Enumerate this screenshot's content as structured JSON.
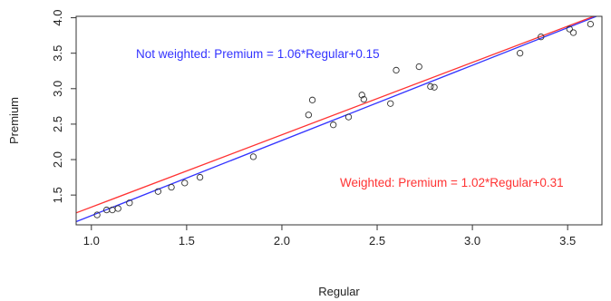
{
  "chart_data": {
    "type": "scatter",
    "title": "",
    "xlabel": "Regular",
    "ylabel": "Premium",
    "xlim": [
      0.92,
      3.68
    ],
    "ylim": [
      1.08,
      4.02
    ],
    "xticks": [
      {
        "value": 1.0,
        "label": "1.0"
      },
      {
        "value": 1.5,
        "label": "1.5"
      },
      {
        "value": 2.0,
        "label": "2.0"
      },
      {
        "value": 2.5,
        "label": "2.5"
      },
      {
        "value": 3.0,
        "label": "3.0"
      },
      {
        "value": 3.5,
        "label": "3.5"
      }
    ],
    "yticks": [
      {
        "value": 1.5,
        "label": "1.5"
      },
      {
        "value": 2.0,
        "label": "2.0"
      },
      {
        "value": 2.5,
        "label": "2.5"
      },
      {
        "value": 3.0,
        "label": "3.0"
      },
      {
        "value": 3.5,
        "label": "3.5"
      },
      {
        "value": 4.0,
        "label": "4.0"
      }
    ],
    "points": [
      {
        "x": 1.03,
        "y": 1.22
      },
      {
        "x": 1.08,
        "y": 1.29
      },
      {
        "x": 1.11,
        "y": 1.29
      },
      {
        "x": 1.14,
        "y": 1.31
      },
      {
        "x": 1.2,
        "y": 1.39
      },
      {
        "x": 1.35,
        "y": 1.55
      },
      {
        "x": 1.42,
        "y": 1.61
      },
      {
        "x": 1.49,
        "y": 1.67
      },
      {
        "x": 1.57,
        "y": 1.75
      },
      {
        "x": 1.85,
        "y": 2.04
      },
      {
        "x": 2.14,
        "y": 2.63
      },
      {
        "x": 2.16,
        "y": 2.84
      },
      {
        "x": 2.27,
        "y": 2.49
      },
      {
        "x": 2.35,
        "y": 2.6
      },
      {
        "x": 2.42,
        "y": 2.91
      },
      {
        "x": 2.43,
        "y": 2.85
      },
      {
        "x": 2.57,
        "y": 2.79
      },
      {
        "x": 2.6,
        "y": 3.26
      },
      {
        "x": 2.72,
        "y": 3.31
      },
      {
        "x": 2.78,
        "y": 3.03
      },
      {
        "x": 2.8,
        "y": 3.02
      },
      {
        "x": 3.25,
        "y": 3.5
      },
      {
        "x": 3.36,
        "y": 3.73
      },
      {
        "x": 3.51,
        "y": 3.84
      },
      {
        "x": 3.53,
        "y": 3.79
      },
      {
        "x": 3.62,
        "y": 3.91
      }
    ],
    "lines": [
      {
        "slope": 1.06,
        "intercept": 0.15,
        "color": "#3333ff"
      },
      {
        "slope": 1.02,
        "intercept": 0.31,
        "color": "#ff3333"
      }
    ],
    "annotations": [
      {
        "text": "Not weighted: Premium = 1.06*Regular+0.15",
        "color": "#3333ff"
      },
      {
        "text": "Weighted: Premium = 1.02*Regular+0.31",
        "color": "#ff3333"
      }
    ]
  }
}
